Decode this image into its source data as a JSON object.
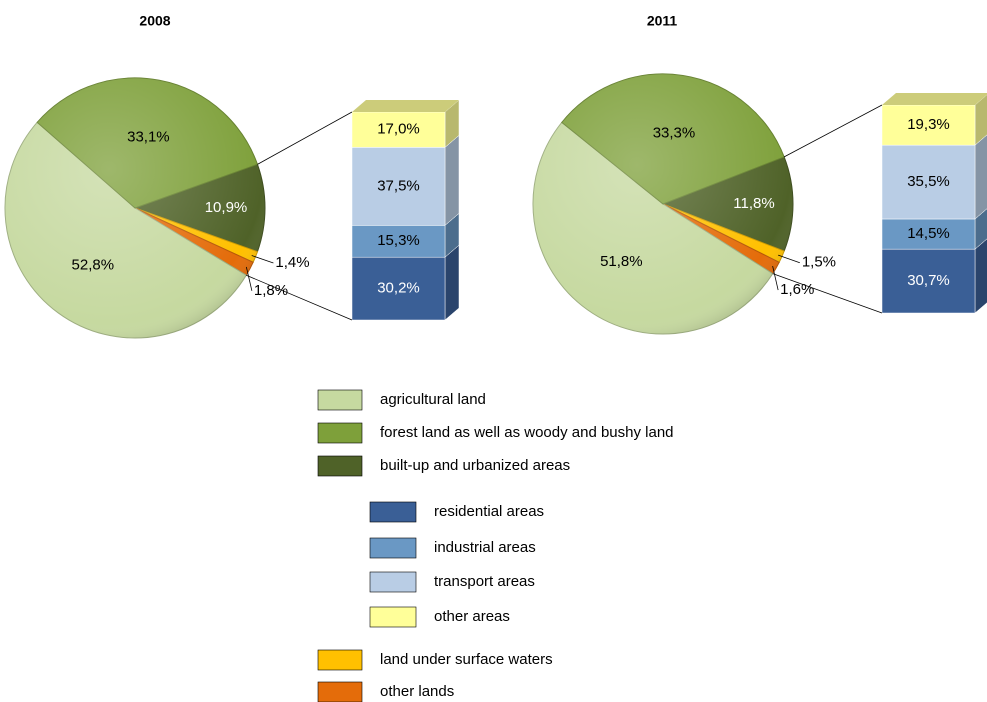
{
  "chart_data": {
    "type": "pie-of-bar",
    "categories": [
      "agricultural land",
      "forest land as well as woody and bushy land",
      "built-up and urbanized areas",
      "land under surface waters",
      "other lands"
    ],
    "colors": [
      "#c6d9a0",
      "#7ea03a",
      "#4f6228",
      "#ffc000",
      "#e46c0a"
    ],
    "bar_categories": [
      "residential areas",
      "industrial areas",
      "transport areas",
      "other areas"
    ],
    "bar_colors": [
      "#3a5f96",
      "#6a98c4",
      "#b9cde5",
      "#ffff99"
    ],
    "charts": [
      {
        "title": "2008",
        "values": [
          52.8,
          33.1,
          10.9,
          1.4,
          1.8
        ],
        "value_labels": [
          "52,8%",
          "33,1%",
          "10,9%",
          "1,4%",
          "1,8%"
        ],
        "bar_values": [
          30.2,
          15.3,
          37.5,
          17.0
        ],
        "bar_value_labels": [
          "30,2%",
          "15,3%",
          "37,5%",
          "17,0%"
        ]
      },
      {
        "title": "2011",
        "values": [
          51.8,
          33.3,
          11.8,
          1.5,
          1.6
        ],
        "value_labels": [
          "51,8%",
          "33,3%",
          "11,8%",
          "1,5%",
          "1,6%"
        ],
        "bar_values": [
          30.7,
          14.5,
          35.5,
          19.3
        ],
        "bar_value_labels": [
          "30,7%",
          "14,5%",
          "35,5%",
          "19,3%"
        ]
      }
    ]
  }
}
